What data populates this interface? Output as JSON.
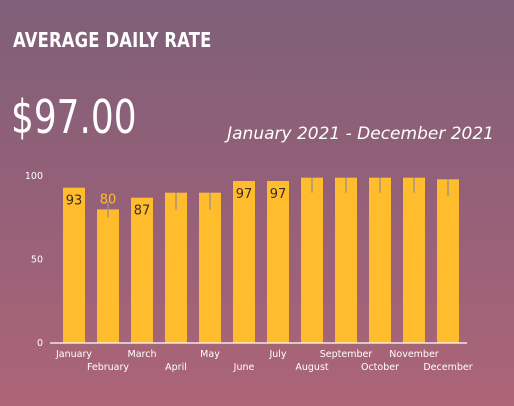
{
  "header": {
    "title": "AVERAGE DAILY RATE",
    "value": "$97.00",
    "period": "January 2021 - December 2021"
  },
  "colors": {
    "bar": "#ffbd2e",
    "highlight_label": "#ffbd2e",
    "inside_label": "#3b2a2a",
    "error_bar": "#9c8f88",
    "axis": "#ffffff"
  },
  "chart_data": {
    "type": "bar",
    "categories": [
      "January",
      "February",
      "March",
      "April",
      "May",
      "June",
      "July",
      "August",
      "September",
      "October",
      "November",
      "December"
    ],
    "values": [
      93,
      80,
      87,
      90,
      90,
      97,
      97,
      99,
      99,
      99,
      99,
      98
    ],
    "data_labels": [
      "93",
      "80",
      "87",
      "",
      "",
      "97",
      "97",
      "",
      "",
      "",
      "",
      ""
    ],
    "error_low": [
      93,
      75,
      87,
      80,
      80,
      97,
      97,
      90,
      90,
      90,
      90,
      88
    ],
    "error_high": [
      93,
      85,
      87,
      90,
      90,
      97,
      97,
      99,
      99,
      99,
      99,
      98
    ],
    "yticks": [
      0,
      50,
      100
    ],
    "ylim": [
      0,
      100
    ],
    "grid": false,
    "legend": "none"
  }
}
